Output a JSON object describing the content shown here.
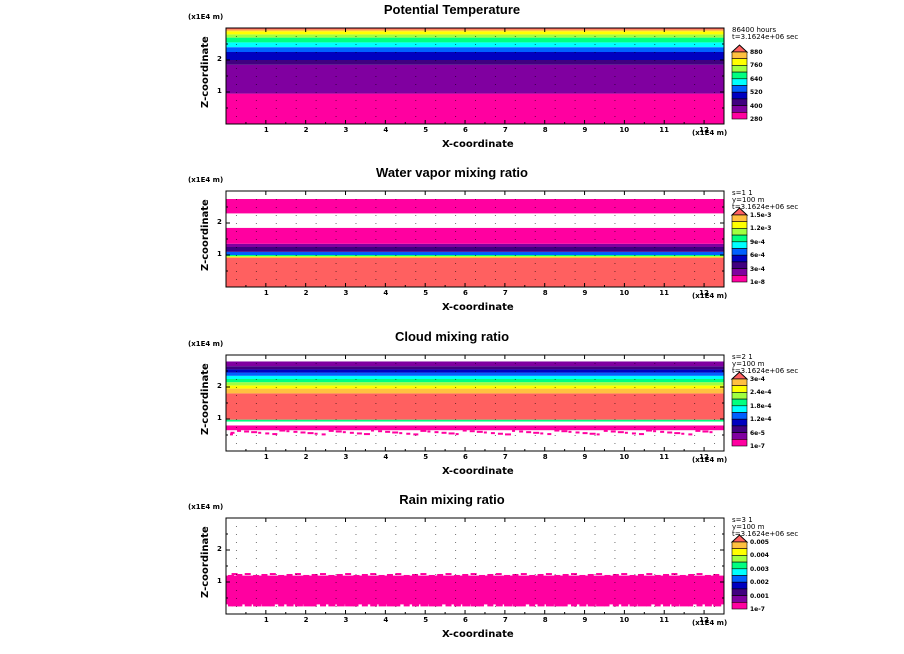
{
  "common": {
    "unit_label": "(x1E4 m)",
    "zlabel": "Z-coordinate",
    "xlabel": "X-coordinate",
    "x_ticks": [
      "1",
      "2",
      "3",
      "4",
      "5",
      "6",
      "7",
      "8",
      "9",
      "10",
      "11",
      "12"
    ],
    "z_ticks": [
      "1",
      "2"
    ]
  },
  "panels": [
    {
      "title": "Potential Temperature",
      "info": [
        "86400 hours",
        "t=3.1624e+06 sec"
      ],
      "levels": [
        "880",
        "760",
        "640",
        "520",
        "400",
        "280"
      ],
      "colors": [
        "#ff6060",
        "#ffc040",
        "#ffff00",
        "#a0ff40",
        "#00ff80",
        "#00ffff",
        "#0060ff",
        "#0000c0",
        "#400080",
        "#8000a0",
        "#ff00a0"
      ]
    },
    {
      "title": "Water vapor mixing ratio",
      "info": [
        "s=1 1",
        "y=100 m",
        "t=3.1624e+06 sec"
      ],
      "levels": [
        "1.5e-3",
        "1.2e-3",
        "9e-4",
        "6e-4",
        "3e-4",
        "1e-8"
      ],
      "colors": [
        "#ff6060",
        "#ffc040",
        "#ffff00",
        "#a0ff40",
        "#00ff80",
        "#00ffff",
        "#0060ff",
        "#0000c0",
        "#400080",
        "#8000a0",
        "#ff00a0"
      ]
    },
    {
      "title": "Cloud mixing ratio",
      "info": [
        "s=2 1",
        "y=100 m",
        "t=3.1624e+06 sec"
      ],
      "levels": [
        "3e-4",
        "2.4e-4",
        "1.8e-4",
        "1.2e-4",
        "6e-5",
        "1e-7"
      ],
      "colors": [
        "#ff6060",
        "#ffc040",
        "#ffff00",
        "#a0ff40",
        "#00ff80",
        "#00ffff",
        "#0060ff",
        "#0000c0",
        "#400080",
        "#8000a0",
        "#ff00a0"
      ]
    },
    {
      "title": "Rain mixing ratio",
      "info": [
        "s=3 1",
        "y=100 m",
        "t=3.1624e+06 sec"
      ],
      "levels": [
        "0.005",
        "0.004",
        "0.003",
        "0.002",
        "0.001",
        "1e-7"
      ],
      "colors": [
        "#ff6060",
        "#ffc040",
        "#ffff00",
        "#a0ff40",
        "#00ff80",
        "#00ffff",
        "#0060ff",
        "#0000c0",
        "#400080",
        "#8000a0",
        "#ff00a0"
      ]
    }
  ],
  "chart_data": [
    {
      "type": "heatmap",
      "title": "Potential Temperature",
      "xlabel": "X-coordinate",
      "ylabel": "Z-coordinate",
      "xlim": [
        0,
        12.5
      ],
      "ylim": [
        0,
        3
      ],
      "colorbar_levels": [
        280,
        400,
        520,
        640,
        760,
        880
      ],
      "layers": [
        {
          "z_range": [
            0,
            0.95
          ],
          "color": "#ff00a0"
        },
        {
          "z_range": [
            0.95,
            1.85
          ],
          "color": "#8000a0"
        },
        {
          "z_range": [
            1.85,
            2.0
          ],
          "color": "#400080"
        },
        {
          "z_range": [
            2.0,
            2.25
          ],
          "color": "#0000c0"
        },
        {
          "z_range": [
            2.25,
            2.4
          ],
          "color": "#0060ff"
        },
        {
          "z_range": [
            2.4,
            2.55
          ],
          "color": "#00ffff"
        },
        {
          "z_range": [
            2.55,
            2.7
          ],
          "color": "#00ff80"
        },
        {
          "z_range": [
            2.7,
            2.8
          ],
          "color": "#a0ff40"
        },
        {
          "z_range": [
            2.8,
            2.9
          ],
          "color": "#ffff00"
        },
        {
          "z_range": [
            2.9,
            2.95
          ],
          "color": "#ffc040"
        },
        {
          "z_range": [
            2.95,
            3.0
          ],
          "color": "#ff6060"
        }
      ]
    },
    {
      "type": "heatmap",
      "title": "Water vapor mixing ratio",
      "xlabel": "X-coordinate",
      "ylabel": "Z-coordinate",
      "xlim": [
        0,
        12.5
      ],
      "ylim": [
        0,
        3
      ],
      "colorbar_levels": [
        "1e-8",
        "3e-4",
        "6e-4",
        "9e-4",
        "1.2e-3",
        "1.5e-3"
      ],
      "layers": [
        {
          "z_range": [
            0,
            0.92
          ],
          "color": "#ff6060"
        },
        {
          "z_range": [
            0.92,
            0.96
          ],
          "color": "#ffff00"
        },
        {
          "z_range": [
            0.96,
            1.0
          ],
          "color": "#00ff80"
        },
        {
          "z_range": [
            1.0,
            1.1
          ],
          "color": "#0060ff"
        },
        {
          "z_range": [
            1.1,
            1.25
          ],
          "color": "#400080"
        },
        {
          "z_range": [
            1.25,
            1.35
          ],
          "color": "#8000a0"
        },
        {
          "z_range": [
            1.35,
            1.85
          ],
          "color": "#ff00a0"
        },
        {
          "z_range": [
            1.85,
            2.3
          ],
          "color": "#ffffff"
        },
        {
          "z_range": [
            2.3,
            2.75
          ],
          "color": "#ff00a0"
        },
        {
          "z_range": [
            2.75,
            3.0
          ],
          "color": "#ffffff"
        }
      ]
    },
    {
      "type": "heatmap",
      "title": "Cloud mixing ratio",
      "xlabel": "X-coordinate",
      "ylabel": "Z-coordinate",
      "xlim": [
        0,
        12.5
      ],
      "ylim": [
        0,
        3
      ],
      "colorbar_levels": [
        "1e-7",
        "6e-5",
        "1.2e-4",
        "1.8e-4",
        "2.4e-4",
        "3e-4"
      ],
      "layers": [
        {
          "z_range": [
            0.65,
            0.8
          ],
          "color": "#ff00a0"
        },
        {
          "z_range": [
            0.8,
            0.92
          ],
          "color": "#ffffff"
        },
        {
          "z_range": [
            0.92,
            0.98
          ],
          "color": "#00ff80"
        },
        {
          "z_range": [
            0.98,
            1.8
          ],
          "color": "#ff6060"
        },
        {
          "z_range": [
            1.8,
            1.95
          ],
          "color": "#ffc040"
        },
        {
          "z_range": [
            1.95,
            2.05
          ],
          "color": "#ffff00"
        },
        {
          "z_range": [
            2.05,
            2.15
          ],
          "color": "#a0ff40"
        },
        {
          "z_range": [
            2.15,
            2.25
          ],
          "color": "#00ff80"
        },
        {
          "z_range": [
            2.25,
            2.35
          ],
          "color": "#00ffff"
        },
        {
          "z_range": [
            2.35,
            2.45
          ],
          "color": "#0060ff"
        },
        {
          "z_range": [
            2.45,
            2.55
          ],
          "color": "#0000c0"
        },
        {
          "z_range": [
            2.55,
            2.65
          ],
          "color": "#400080"
        },
        {
          "z_range": [
            2.65,
            2.8
          ],
          "color": "#8000a0"
        },
        {
          "z_range": [
            2.8,
            3.0
          ],
          "color": "#ffffff"
        }
      ]
    },
    {
      "type": "heatmap",
      "title": "Rain mixing ratio",
      "xlabel": "X-coordinate",
      "ylabel": "Z-coordinate",
      "xlim": [
        0,
        12.5
      ],
      "ylim": [
        0,
        3
      ],
      "colorbar_levels": [
        "1e-7",
        "0.001",
        "0.002",
        "0.003",
        "0.004",
        "0.005"
      ],
      "layers": [
        {
          "z_range": [
            0.3,
            1.2
          ],
          "color": "#ff00a0"
        }
      ]
    }
  ]
}
